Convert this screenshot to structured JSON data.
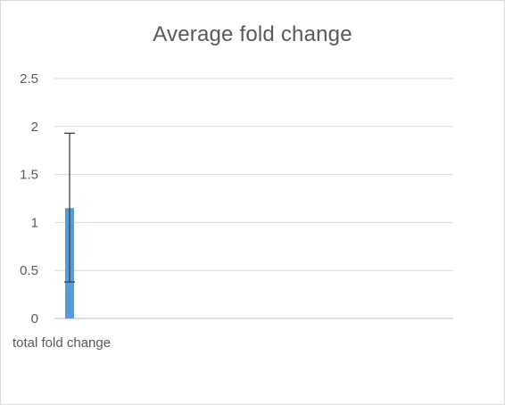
{
  "chart_data": {
    "type": "bar",
    "title": "Average fold change",
    "categories": [
      "total fold change"
    ],
    "values": [
      1.15
    ],
    "error_bars": {
      "upper": [
        1.93
      ],
      "lower": [
        0.38
      ]
    },
    "xlabel": "",
    "ylabel": "",
    "ylim": [
      0,
      2.5
    ],
    "yticks": [
      0,
      0.5,
      1,
      1.5,
      2,
      2.5
    ],
    "ytick_labels": [
      "0",
      "0.5",
      "1",
      "1.5",
      "2",
      "2.5"
    ],
    "grid": true,
    "legend": "none",
    "colors": {
      "bar": "#5b9bd5",
      "gridline": "#d9d9d9",
      "axis": "#bfbfbf",
      "error_bar": "#404040",
      "text": "#595959"
    }
  }
}
